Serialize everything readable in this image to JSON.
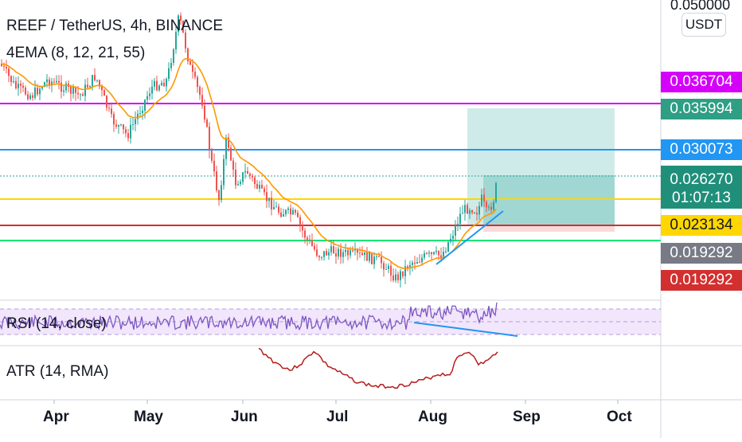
{
  "header": {
    "symbol_line": "REEF / TetherUS, 4h, BINANCE",
    "ema_indicator": "4EMA (8, 12, 21, 55)",
    "rsi_indicator": "RSI (14, close)",
    "atr_indicator": "ATR (14, RMA)"
  },
  "price_axis": {
    "currency": "USDT",
    "top_value": "0.050000",
    "labels": [
      {
        "text": "0.036704",
        "color": "#d500f9",
        "role": "magenta-line"
      },
      {
        "text": "0.035994",
        "color": "#2e9e84",
        "role": "take-profit"
      },
      {
        "text": "0.030073",
        "color": "#2196f3",
        "role": "blue-line"
      },
      {
        "text": "0.026270",
        "color": "#1f8f7a",
        "role": "last-price"
      },
      {
        "text": "01:07:13",
        "color": "#1f8f7a",
        "role": "countdown"
      },
      {
        "text": "0.023134",
        "color": "#ffd600",
        "role": "yellow-line",
        "text_color": "#131722"
      },
      {
        "text": "0.019292",
        "color": "#787b86",
        "role": "stop-level"
      },
      {
        "text": "0.019292",
        "color": "#d32f2f",
        "role": "red-level"
      }
    ]
  },
  "time_axis": {
    "months": [
      "Apr",
      "May",
      "Jun",
      "Jul",
      "Aug",
      "Sep",
      "Oct"
    ]
  },
  "colors": {
    "candle_up": "#26a69a",
    "candle_down": "#ef5350",
    "ema_orange": "#ff9800",
    "magenta_line": "#d500f9",
    "blue_line": "#2196f3",
    "yellow_line": "#ffd600",
    "red_line": "#d32f2f",
    "green_line": "#00e676",
    "rsi_line": "#7e57c2",
    "atr_line": "#b71c1c",
    "trendline": "#2196f3"
  }
}
